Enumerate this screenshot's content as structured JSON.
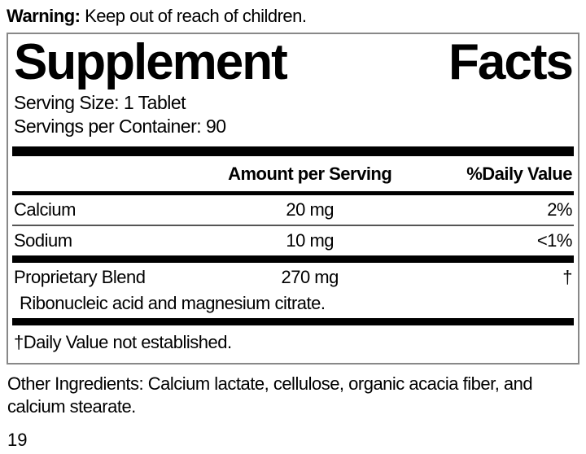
{
  "warning": {
    "label": "Warning:",
    "text": " Keep out of reach of children."
  },
  "panel": {
    "title": {
      "word1": "Supplement",
      "word2": "Facts"
    },
    "serving_size": "Serving Size: 1 Tablet",
    "servings_per_container": "Servings per Container: 90",
    "header": {
      "amount": "Amount per Serving",
      "daily_value": "%Daily Value"
    },
    "rows": [
      {
        "name": "Calcium",
        "amount": "20 mg",
        "dv": "2%"
      },
      {
        "name": "Sodium",
        "amount": "10 mg",
        "dv": "<1%"
      },
      {
        "name": "Proprietary Blend",
        "amount": "270 mg",
        "dv": "†",
        "sub_ingredients": "Ribonucleic acid and magnesium citrate."
      }
    ],
    "footnote": "†Daily Value not established."
  },
  "other_ingredients": "Other Ingredients: Calcium lactate, cellulose, organic acacia fiber, and calcium stearate.",
  "page_number": "19",
  "colors": {
    "ink": "#000000",
    "background": "#ffffff",
    "box_border": "#888888"
  }
}
